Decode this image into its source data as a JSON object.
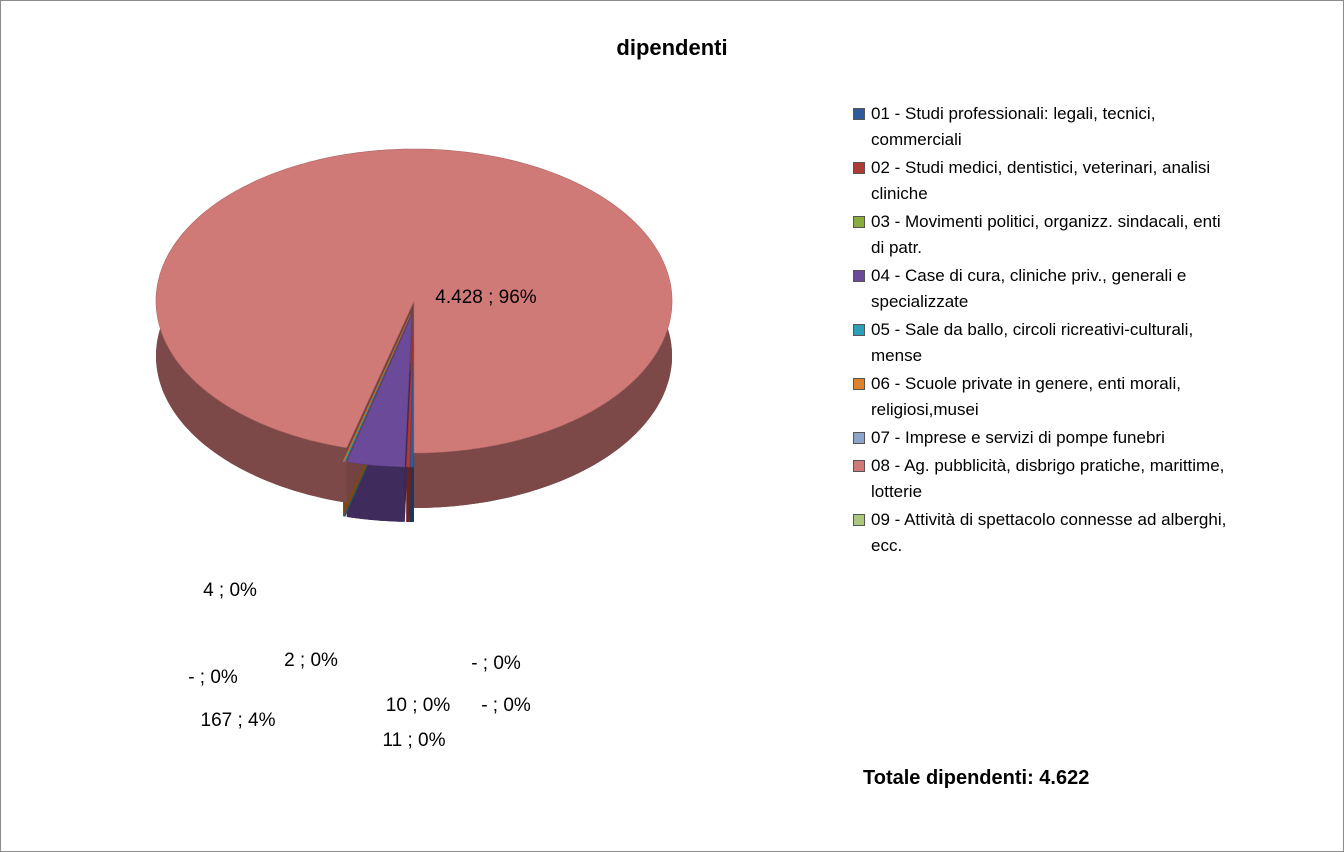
{
  "chart_data": {
    "type": "pie",
    "title": "dipendenti",
    "categories": [
      "01 - Studi professionali: legali, tecnici, commerciali",
      "02 - Studi medici, dentistici, veterinari, analisi cliniche",
      "03 - Movimenti politici, organizz. sindacali, enti di patr.",
      "04 - Case di cura, cliniche priv., generali e specializzate",
      "05 - Sale da ballo, circoli ricreativi-culturali, mense",
      "06 - Scuole private in genere, enti morali, religiosi,musei",
      "07 - Imprese e servizi di pompe funebri",
      "08 - Ag. pubblicità, disbrigo pratiche, marittime, lotterie",
      "09 - Attività di spettacolo connesse ad alberghi, ecc."
    ],
    "values": [
      11,
      10,
      0,
      167,
      4,
      2,
      0,
      4428,
      0
    ],
    "value_labels": [
      "11 ; 0%",
      "10 ; 0%",
      "-  ; 0%",
      "167 ; 4%",
      "4 ; 0%",
      "2 ; 0%",
      "-  ; 0%",
      "4.428 ; 96%",
      "-  ; 0%"
    ],
    "colors": [
      "#2e5a9c",
      "#b03a36",
      "#8aac3c",
      "#6b4a9a",
      "#2b9fb8",
      "#e0822a",
      "#8da3c9",
      "#d07a78",
      "#aac77c"
    ],
    "annotation": "Totale dipendenti: 4.622"
  }
}
